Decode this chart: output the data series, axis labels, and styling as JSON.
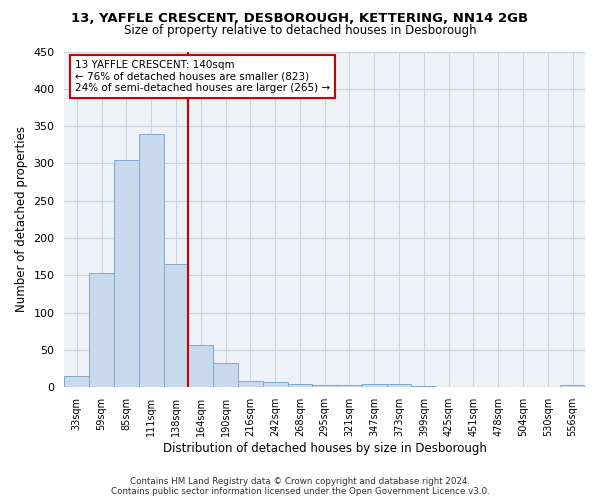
{
  "title1": "13, YAFFLE CRESCENT, DESBOROUGH, KETTERING, NN14 2GB",
  "title2": "Size of property relative to detached houses in Desborough",
  "xlabel": "Distribution of detached houses by size in Desborough",
  "ylabel": "Number of detached properties",
  "footer": "Contains HM Land Registry data © Crown copyright and database right 2024.\nContains public sector information licensed under the Open Government Licence v3.0.",
  "bin_labels": [
    "33sqm",
    "59sqm",
    "85sqm",
    "111sqm",
    "138sqm",
    "164sqm",
    "190sqm",
    "216sqm",
    "242sqm",
    "268sqm",
    "295sqm",
    "321sqm",
    "347sqm",
    "373sqm",
    "399sqm",
    "425sqm",
    "451sqm",
    "478sqm",
    "504sqm",
    "530sqm",
    "556sqm"
  ],
  "bar_values": [
    15,
    153,
    305,
    340,
    165,
    57,
    33,
    9,
    7,
    5,
    3,
    3,
    5,
    5,
    2,
    0,
    0,
    0,
    0,
    0,
    3
  ],
  "bar_color": "#c9d9ed",
  "bar_edge_color": "#7ea8cc",
  "grid_color": "#c8d4de",
  "bg_color": "#eef2f7",
  "vline_color": "#cc0000",
  "annotation_text": "13 YAFFLE CRESCENT: 140sqm\n← 76% of detached houses are smaller (823)\n24% of semi-detached houses are larger (265) →",
  "annotation_box_color": "#ffffff",
  "annotation_box_edge": "#cc0000",
  "ylim": [
    0,
    450
  ],
  "yticks": [
    0,
    50,
    100,
    150,
    200,
    250,
    300,
    350,
    400,
    450
  ],
  "title1_fontsize": 9.5,
  "title2_fontsize": 8.5
}
